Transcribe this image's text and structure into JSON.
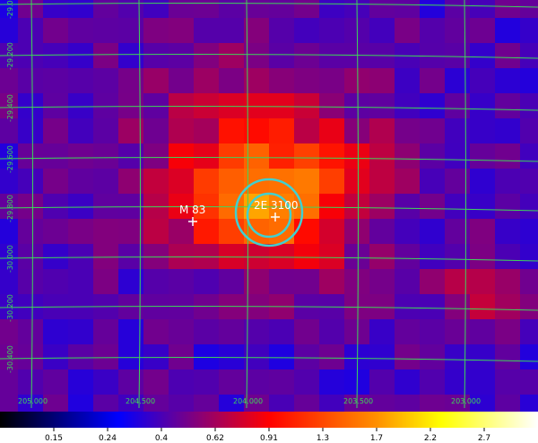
{
  "sources": [
    {
      "label": "M 83"
    },
    {
      "label": "2E 3100"
    }
  ],
  "ra_labels": [
    "205.000",
    "204.500",
    "204.000",
    "203.500",
    "203.000"
  ],
  "dec_labels": [
    "-29.000",
    "-29.200",
    "-29.400",
    "-29.600",
    "-29.800",
    "-30.000",
    "-30.200",
    "-30.400"
  ],
  "colorbar_ticks": [
    "0.15",
    "0.24",
    "0.4",
    "0.62",
    "0.91",
    "1.3",
    "1.7",
    "2.2",
    "2.7"
  ]
}
